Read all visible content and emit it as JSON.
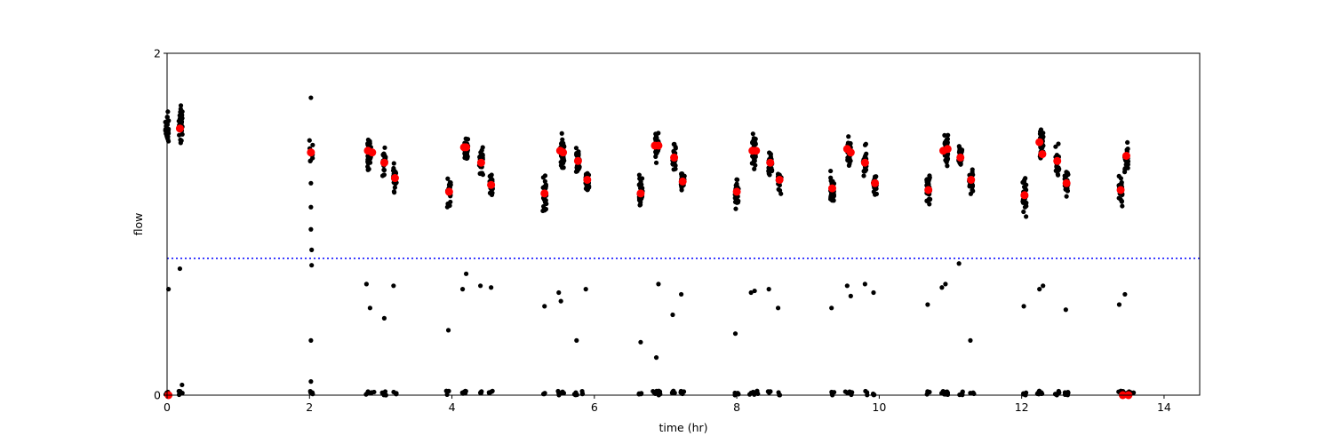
{
  "chart_data": {
    "type": "scatter",
    "xlabel": "time (hr)",
    "ylabel": "flow",
    "xlim": [
      0,
      14.5
    ],
    "ylim": [
      0,
      2
    ],
    "x_ticks": [
      0,
      2,
      4,
      6,
      8,
      10,
      12,
      14
    ],
    "y_ticks": [
      0,
      2
    ],
    "grid": false,
    "threshold": {
      "y": 0.8,
      "color": "#0000ff",
      "style": "dotted"
    },
    "series": [
      {
        "marker_color": "#000000",
        "clusters": [
          {
            "x": 0.0,
            "y": 1.56,
            "spread": 0.12,
            "n": 30
          },
          {
            "x": 0.19,
            "y": 1.59,
            "spread": 0.12,
            "n": 40
          },
          {
            "x": 2.02,
            "y": 1.42,
            "spread": 0.1,
            "n": 10
          },
          {
            "x": 2.84,
            "y": 1.42,
            "spread": 0.1,
            "n": 45
          },
          {
            "x": 3.05,
            "y": 1.36,
            "spread": 0.1,
            "n": 20
          },
          {
            "x": 3.2,
            "y": 1.27,
            "spread": 0.09,
            "n": 25
          },
          {
            "x": 3.96,
            "y": 1.19,
            "spread": 0.11,
            "n": 30
          },
          {
            "x": 4.2,
            "y": 1.44,
            "spread": 0.11,
            "n": 45
          },
          {
            "x": 4.41,
            "y": 1.36,
            "spread": 0.12,
            "n": 30
          },
          {
            "x": 4.55,
            "y": 1.23,
            "spread": 0.1,
            "n": 25
          },
          {
            "x": 5.3,
            "y": 1.18,
            "spread": 0.11,
            "n": 30
          },
          {
            "x": 5.55,
            "y": 1.42,
            "spread": 0.11,
            "n": 45
          },
          {
            "x": 5.77,
            "y": 1.37,
            "spread": 0.1,
            "n": 30
          },
          {
            "x": 5.9,
            "y": 1.25,
            "spread": 0.09,
            "n": 25
          },
          {
            "x": 6.65,
            "y": 1.18,
            "spread": 0.11,
            "n": 30
          },
          {
            "x": 6.88,
            "y": 1.46,
            "spread": 0.11,
            "n": 45
          },
          {
            "x": 7.12,
            "y": 1.39,
            "spread": 0.1,
            "n": 30
          },
          {
            "x": 7.24,
            "y": 1.24,
            "spread": 0.09,
            "n": 25
          },
          {
            "x": 8.0,
            "y": 1.19,
            "spread": 0.11,
            "n": 30
          },
          {
            "x": 8.24,
            "y": 1.43,
            "spread": 0.11,
            "n": 45
          },
          {
            "x": 8.47,
            "y": 1.36,
            "spread": 0.1,
            "n": 30
          },
          {
            "x": 8.6,
            "y": 1.26,
            "spread": 0.09,
            "n": 25
          },
          {
            "x": 9.34,
            "y": 1.21,
            "spread": 0.11,
            "n": 30
          },
          {
            "x": 9.58,
            "y": 1.42,
            "spread": 0.11,
            "n": 45
          },
          {
            "x": 9.8,
            "y": 1.36,
            "spread": 0.1,
            "n": 30
          },
          {
            "x": 9.94,
            "y": 1.24,
            "spread": 0.09,
            "n": 25
          },
          {
            "x": 10.69,
            "y": 1.2,
            "spread": 0.11,
            "n": 30
          },
          {
            "x": 10.94,
            "y": 1.44,
            "spread": 0.11,
            "n": 45
          },
          {
            "x": 11.14,
            "y": 1.39,
            "spread": 0.1,
            "n": 30
          },
          {
            "x": 11.29,
            "y": 1.26,
            "spread": 0.09,
            "n": 25
          },
          {
            "x": 12.04,
            "y": 1.17,
            "spread": 0.11,
            "n": 30
          },
          {
            "x": 12.28,
            "y": 1.46,
            "spread": 0.11,
            "n": 45
          },
          {
            "x": 12.5,
            "y": 1.37,
            "spread": 0.1,
            "n": 30
          },
          {
            "x": 12.63,
            "y": 1.24,
            "spread": 0.09,
            "n": 25
          },
          {
            "x": 13.39,
            "y": 1.2,
            "spread": 0.11,
            "n": 30
          },
          {
            "x": 13.47,
            "y": 1.37,
            "spread": 0.1,
            "n": 25
          }
        ],
        "points": [
          {
            "x": 0.02,
            "y": 0.62
          },
          {
            "x": 0.18,
            "y": 0.74
          },
          {
            "x": 0.21,
            "y": 0.06
          },
          {
            "x": 2.02,
            "y": 0.32
          },
          {
            "x": 2.02,
            "y": 0.08
          },
          {
            "x": 2.03,
            "y": 0.76
          },
          {
            "x": 2.03,
            "y": 0.85
          },
          {
            "x": 2.02,
            "y": 0.97
          },
          {
            "x": 2.02,
            "y": 1.1
          },
          {
            "x": 2.02,
            "y": 1.24
          },
          {
            "x": 2.02,
            "y": 1.74
          },
          {
            "x": 2.8,
            "y": 0.65
          },
          {
            "x": 2.85,
            "y": 0.51
          },
          {
            "x": 3.05,
            "y": 0.45
          },
          {
            "x": 3.18,
            "y": 0.64
          },
          {
            "x": 3.95,
            "y": 0.38
          },
          {
            "x": 4.15,
            "y": 0.62
          },
          {
            "x": 4.2,
            "y": 0.71
          },
          {
            "x": 4.4,
            "y": 0.64
          },
          {
            "x": 4.55,
            "y": 0.63
          },
          {
            "x": 5.3,
            "y": 0.52
          },
          {
            "x": 5.5,
            "y": 0.6
          },
          {
            "x": 5.53,
            "y": 0.55
          },
          {
            "x": 5.75,
            "y": 0.32
          },
          {
            "x": 5.88,
            "y": 0.62
          },
          {
            "x": 6.65,
            "y": 0.31
          },
          {
            "x": 6.87,
            "y": 0.22
          },
          {
            "x": 6.9,
            "y": 0.65
          },
          {
            "x": 7.1,
            "y": 0.47
          },
          {
            "x": 7.22,
            "y": 0.59
          },
          {
            "x": 7.98,
            "y": 0.36
          },
          {
            "x": 8.2,
            "y": 0.6
          },
          {
            "x": 8.25,
            "y": 0.61
          },
          {
            "x": 8.45,
            "y": 0.62
          },
          {
            "x": 8.58,
            "y": 0.51
          },
          {
            "x": 9.33,
            "y": 0.51
          },
          {
            "x": 9.55,
            "y": 0.64
          },
          {
            "x": 9.6,
            "y": 0.58
          },
          {
            "x": 9.8,
            "y": 0.65
          },
          {
            "x": 9.92,
            "y": 0.6
          },
          {
            "x": 10.68,
            "y": 0.53
          },
          {
            "x": 10.88,
            "y": 0.63
          },
          {
            "x": 10.93,
            "y": 0.65
          },
          {
            "x": 11.12,
            "y": 0.77
          },
          {
            "x": 11.28,
            "y": 0.32
          },
          {
            "x": 12.03,
            "y": 0.52
          },
          {
            "x": 12.25,
            "y": 0.62
          },
          {
            "x": 12.3,
            "y": 0.64
          },
          {
            "x": 12.62,
            "y": 0.5
          },
          {
            "x": 13.37,
            "y": 0.53
          },
          {
            "x": 13.45,
            "y": 0.59
          }
        ],
        "near_zero_x": [
          0.0,
          0.19,
          2.02,
          2.82,
          2.88,
          3.05,
          3.2,
          3.95,
          4.15,
          4.2,
          4.4,
          4.55,
          5.3,
          5.5,
          5.55,
          5.75,
          5.85,
          6.65,
          6.85,
          6.9,
          7.12,
          7.24,
          8.0,
          8.2,
          8.27,
          8.45,
          8.6,
          9.34,
          9.55,
          9.6,
          9.8,
          9.93,
          10.69,
          10.9,
          10.95,
          11.15,
          11.3,
          12.04,
          12.25,
          12.3,
          12.5,
          12.63,
          13.39,
          13.45,
          13.5,
          13.55
        ]
      },
      {
        "marker_color": "#ff0000",
        "points": [
          {
            "x": 0.02,
            "y": 0.0
          },
          {
            "x": 0.18,
            "y": 1.56
          },
          {
            "x": 2.02,
            "y": 1.42
          },
          {
            "x": 2.82,
            "y": 1.43
          },
          {
            "x": 2.88,
            "y": 1.42
          },
          {
            "x": 3.05,
            "y": 1.36
          },
          {
            "x": 3.2,
            "y": 1.27
          },
          {
            "x": 3.96,
            "y": 1.19
          },
          {
            "x": 4.17,
            "y": 1.45
          },
          {
            "x": 4.2,
            "y": 1.45
          },
          {
            "x": 4.41,
            "y": 1.36
          },
          {
            "x": 4.55,
            "y": 1.23
          },
          {
            "x": 5.3,
            "y": 1.18
          },
          {
            "x": 5.52,
            "y": 1.43
          },
          {
            "x": 5.56,
            "y": 1.42
          },
          {
            "x": 5.77,
            "y": 1.37
          },
          {
            "x": 5.9,
            "y": 1.26
          },
          {
            "x": 6.65,
            "y": 1.18
          },
          {
            "x": 6.85,
            "y": 1.46
          },
          {
            "x": 6.9,
            "y": 1.46
          },
          {
            "x": 7.12,
            "y": 1.39
          },
          {
            "x": 7.24,
            "y": 1.25
          },
          {
            "x": 8.0,
            "y": 1.19
          },
          {
            "x": 8.22,
            "y": 1.43
          },
          {
            "x": 8.27,
            "y": 1.43
          },
          {
            "x": 8.47,
            "y": 1.36
          },
          {
            "x": 8.6,
            "y": 1.26
          },
          {
            "x": 9.34,
            "y": 1.21
          },
          {
            "x": 9.55,
            "y": 1.44
          },
          {
            "x": 9.6,
            "y": 1.42
          },
          {
            "x": 9.8,
            "y": 1.36
          },
          {
            "x": 9.94,
            "y": 1.24
          },
          {
            "x": 10.69,
            "y": 1.2
          },
          {
            "x": 10.9,
            "y": 1.43
          },
          {
            "x": 10.96,
            "y": 1.44
          },
          {
            "x": 11.14,
            "y": 1.39
          },
          {
            "x": 11.29,
            "y": 1.26
          },
          {
            "x": 12.04,
            "y": 1.17
          },
          {
            "x": 12.25,
            "y": 1.48
          },
          {
            "x": 12.29,
            "y": 1.41
          },
          {
            "x": 12.5,
            "y": 1.37
          },
          {
            "x": 12.63,
            "y": 1.24
          },
          {
            "x": 13.39,
            "y": 1.2
          },
          {
            "x": 13.47,
            "y": 1.4
          },
          {
            "x": 13.42,
            "y": 0.0
          },
          {
            "x": 13.5,
            "y": 0.0
          }
        ]
      }
    ]
  }
}
